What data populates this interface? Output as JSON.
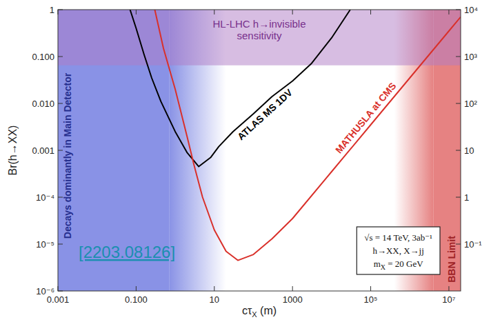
{
  "chart_data": {
    "type": "line",
    "log": true,
    "grid": false,
    "y_label": "Br(h→XX)",
    "x_label": [
      {
        "text": "cτ"
      },
      {
        "text": "X",
        "sub": true
      },
      {
        "text": " (m)"
      }
    ],
    "xlim": [
      0.001,
      20000000
    ],
    "ylim": [
      1e-06,
      1
    ],
    "y2lim": [
      0.01,
      10000
    ],
    "xticks": [
      0.001,
      {
        "value": 0.1,
        "label": "0.100"
      },
      10,
      1000,
      {
        "value": 100000,
        "label": "10⁵"
      },
      {
        "value": 10000000,
        "label": "10⁷"
      }
    ],
    "yticks": [
      {
        "value": 1e-06,
        "label": "10⁻⁶"
      },
      {
        "value": 1e-05,
        "label": "10⁻⁵"
      },
      {
        "value": 0.0001,
        "label": "10⁻⁴"
      },
      0.001,
      {
        "value": 0.01,
        "label": "0.010"
      },
      {
        "value": 0.1,
        "label": "0.100"
      },
      1
    ],
    "y2ticks": [
      {
        "value": 0.1,
        "label": "10⁻¹"
      },
      1,
      10,
      {
        "value": 100,
        "label": "10²"
      },
      {
        "value": 1000,
        "label": "10³"
      },
      {
        "value": 10000,
        "label": "10⁴"
      }
    ],
    "series": [
      {
        "name": "ATLAS MS 1DV",
        "color": "#000000",
        "line_style": "solid",
        "x": [
          0.07,
          0.1,
          0.16,
          0.25,
          0.43,
          1,
          2,
          4,
          8,
          13,
          30,
          100,
          300,
          1000,
          3000,
          10000,
          30000
        ],
        "values": [
          1,
          0.4,
          0.11,
          0.035,
          0.011,
          0.0025,
          0.0009,
          0.00045,
          0.0007,
          0.0012,
          0.0025,
          0.006,
          0.014,
          0.03,
          0.07,
          0.25,
          1
        ]
      },
      {
        "name": "MATHUSLA at CMS",
        "color": "#d9302a",
        "line_style": "solid",
        "x": [
          0.3,
          0.5,
          1,
          2,
          3,
          5,
          10,
          20,
          40,
          100,
          300,
          1000,
          10000,
          100000,
          1000000,
          10000000,
          20000000
        ],
        "values": [
          1,
          0.15,
          0.02,
          0.002,
          0.0005,
          0.0001,
          2e-05,
          7e-06,
          4.5e-06,
          6e-06,
          1.3e-05,
          3.5e-05,
          0.00035,
          0.0035,
          0.035,
          0.35,
          0.7
        ]
      }
    ],
    "regions": [
      {
        "label": "Decays dominantly in Main Detector",
        "axis": "x",
        "from": 0.001,
        "to": 0.7,
        "fade_to": 20,
        "color": "#6f7ae0"
      },
      {
        "label": "BBN Limit",
        "axis": "x",
        "from": 4000000,
        "to": 20000000,
        "fade_to": 400000,
        "color": "#e06666"
      },
      {
        "label": "HL-LHC h→invisible sensitivity",
        "axis": "y",
        "from": 0.065,
        "to": 1,
        "color": "#b07cc6"
      }
    ],
    "inset": [
      [
        {
          "text": "√s = 14 TeV, 3ab⁻¹"
        }
      ],
      [
        {
          "text": "h→XX, X→jj"
        }
      ],
      [
        {
          "text": "m"
        },
        {
          "text": "X",
          "sub": true
        },
        {
          "text": " = 20 GeV"
        }
      ]
    ],
    "annotations": [
      {
        "text": "[2203.08126]",
        "color": "#1b8fb0"
      }
    ]
  }
}
